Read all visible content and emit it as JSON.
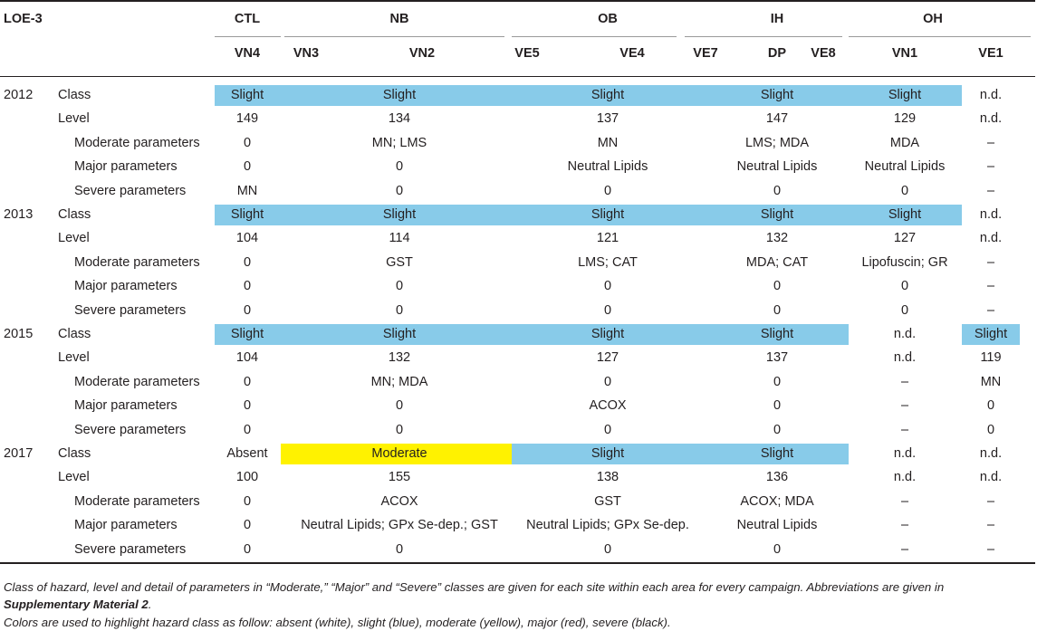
{
  "table": {
    "corner_label": "LOE-3",
    "areas": [
      "CTL",
      "NB",
      "OB",
      "IH",
      "OH"
    ],
    "sites": [
      "VN4",
      "VN3",
      "VN2",
      "VE5",
      "VE4",
      "VE7",
      "DP",
      "VE8",
      "VN1",
      "VE1"
    ],
    "row_labels": [
      "Class",
      "Level",
      "Moderate parameters",
      "Major parameters",
      "Severe parameters"
    ],
    "class_colors": {
      "Absent": "#ffffff",
      "Slight": "#88cbe9",
      "Moderate": "#fff200",
      "Major": "#ff0000",
      "Severe": "#000000"
    },
    "campaigns": [
      {
        "year": "2012",
        "class": [
          "Slight",
          "Slight",
          "Slight",
          "Slight",
          "Slight",
          "n.d."
        ],
        "level": [
          "149",
          "134",
          "137",
          "147",
          "129",
          "n.d."
        ],
        "moderate": [
          "0",
          "MN; LMS",
          "MN",
          "LMS; MDA",
          "MDA",
          "–"
        ],
        "major": [
          "0",
          "0",
          "Neutral Lipids",
          "Neutral Lipids",
          "Neutral Lipids",
          "–"
        ],
        "severe": [
          "MN",
          "0",
          "0",
          "0",
          "0",
          "–"
        ]
      },
      {
        "year": "2013",
        "class": [
          "Slight",
          "Slight",
          "Slight",
          "Slight",
          "Slight",
          "n.d."
        ],
        "level": [
          "104",
          "114",
          "121",
          "132",
          "127",
          "n.d."
        ],
        "moderate": [
          "0",
          "GST",
          "LMS; CAT",
          "MDA; CAT",
          "Lipofuscin; GR",
          "–"
        ],
        "major": [
          "0",
          "0",
          "0",
          "0",
          "0",
          "–"
        ],
        "severe": [
          "0",
          "0",
          "0",
          "0",
          "0",
          "–"
        ]
      },
      {
        "year": "2015",
        "class": [
          "Slight",
          "Slight",
          "Slight",
          "Slight",
          "n.d.",
          "Slight"
        ],
        "level": [
          "104",
          "132",
          "127",
          "137",
          "n.d.",
          "119"
        ],
        "moderate": [
          "0",
          "MN; MDA",
          "0",
          "0",
          "–",
          "MN"
        ],
        "major": [
          "0",
          "0",
          "ACOX",
          "0",
          "–",
          "0"
        ],
        "severe": [
          "0",
          "0",
          "0",
          "0",
          "–",
          "0"
        ]
      },
      {
        "year": "2017",
        "class": [
          "Absent",
          "Moderate",
          "Slight",
          "Slight",
          "n.d.",
          "n.d."
        ],
        "level": [
          "100",
          "155",
          "138",
          "136",
          "n.d.",
          "n.d."
        ],
        "moderate": [
          "0",
          "ACOX",
          "GST",
          "ACOX; MDA",
          "–",
          "–"
        ],
        "major": [
          "0",
          "Neutral Lipids; GPx Se-dep.; GST",
          "Neutral Lipids; GPx Se-dep.",
          "Neutral Lipids",
          "–",
          "–"
        ],
        "severe": [
          "0",
          "0",
          "0",
          "0",
          "–",
          "–"
        ]
      }
    ]
  },
  "footnote": {
    "line1_part1": "Class of hazard, level and detail of parameters in “Moderate,” “Major” and “Severe” classes are given for each site within each area for every campaign. Abbreviations are given in ",
    "line1_bold": "Supplementary Material 2",
    "line1_part2": ".",
    "line2": "Colors are used to highlight hazard class as follow: absent (white), slight (blue), moderate (yellow), major (red), severe (black)."
  }
}
